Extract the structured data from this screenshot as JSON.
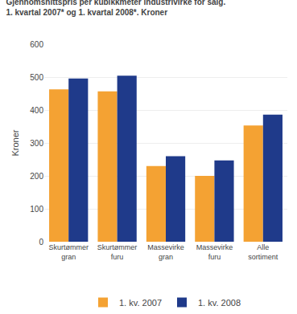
{
  "chart_data": {
    "type": "bar",
    "title": "Gjennomsnittspris per kubikkmeter industrivirke for salg.",
    "subtitle": "1. kvartal 2007* og 1. kvartal 2008*. Kroner",
    "y_label": "Kroner",
    "categories": [
      "Skurtømmer\ngran",
      "Skurtømmer\nfuru",
      "Massevirke\ngran",
      "Massevirke\nfuru",
      "Alle\nsortiment"
    ],
    "series": [
      {
        "name": "1. kv. 2007",
        "color": "#f4a233",
        "values": [
          463,
          457,
          230,
          200,
          353
        ]
      },
      {
        "name": "1. kv. 2008",
        "color": "#1f3a8a",
        "values": [
          496,
          504,
          260,
          247,
          386
        ]
      }
    ],
    "ylim": [
      0,
      600
    ],
    "yticks": [
      0,
      100,
      200,
      300,
      400,
      500,
      600
    ],
    "grid": true,
    "legend": "bottom"
  }
}
